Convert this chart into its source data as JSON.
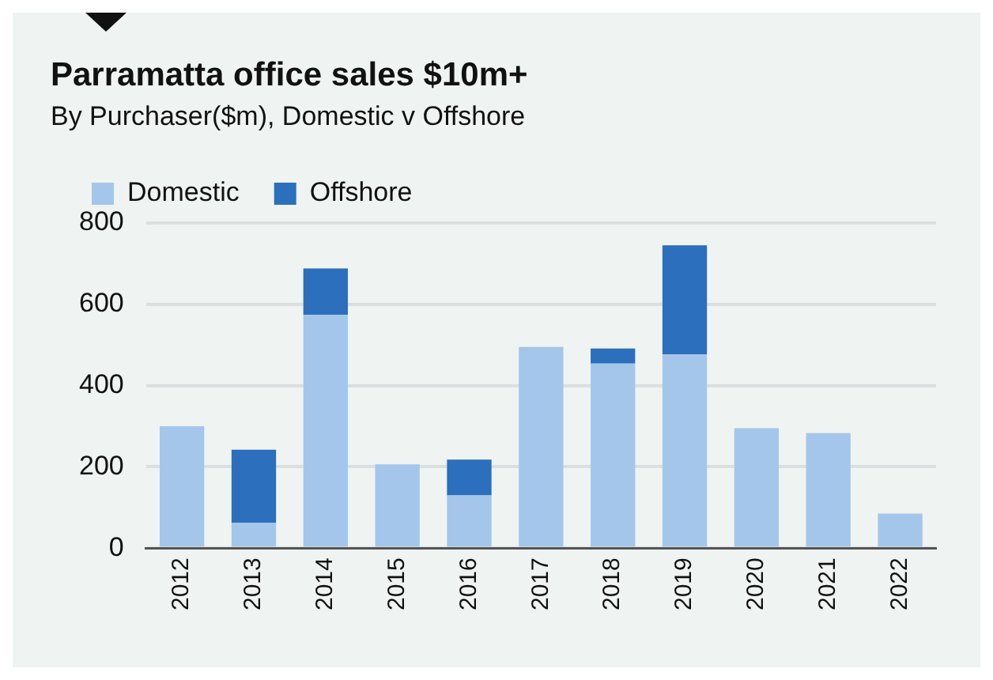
{
  "chart_data": {
    "type": "bar",
    "title": "Parramatta office sales $10m+",
    "subtitle": "By Purchaser($m), Domestic v Offshore",
    "categories": [
      "2012",
      "2013",
      "2014",
      "2015",
      "2016",
      "2017",
      "2018",
      "2019",
      "2020",
      "2021",
      "2022"
    ],
    "series": [
      {
        "name": "Domestic",
        "color": "#a4c6ea",
        "values": [
          300,
          63,
          574,
          206,
          130,
          495,
          454,
          477,
          295,
          283,
          85
        ]
      },
      {
        "name": "Offshore",
        "color": "#2b6fbd",
        "values": [
          0,
          179,
          114,
          0,
          88,
          0,
          37,
          268,
          0,
          0,
          0
        ]
      }
    ],
    "stacked": true,
    "ylim": [
      0,
      800
    ],
    "yticks": [
      0,
      200,
      400,
      600,
      800
    ],
    "grid": "y",
    "legend": "top left"
  }
}
